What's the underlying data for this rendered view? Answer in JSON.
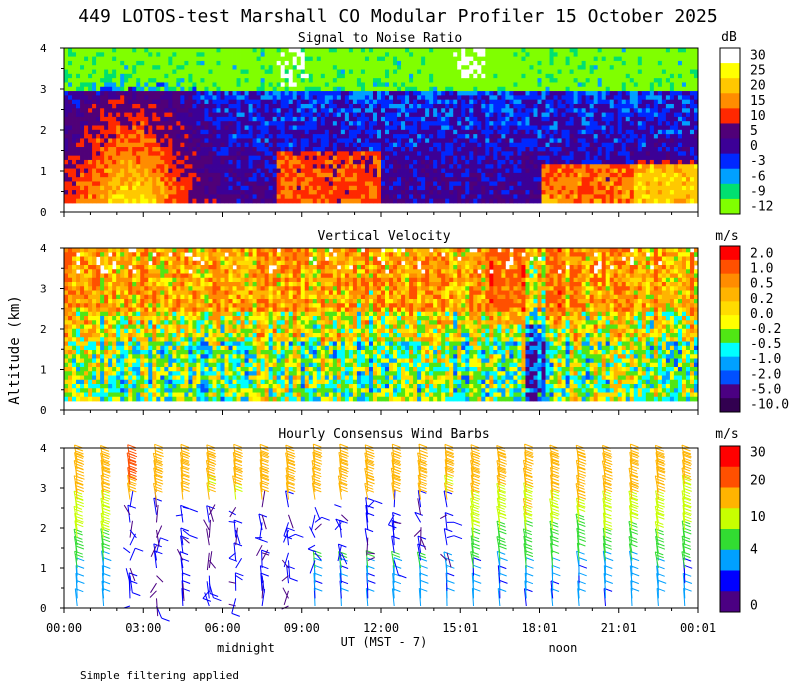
{
  "title": "449 LOTOS-test Marshall CO Modular Profiler 15 October 2025",
  "ylabel": "Altitude (km)",
  "xlabel": "UT  (MST - 7)",
  "x_ticks": [
    "00:00",
    "03:00",
    "06:00",
    "09:00",
    "12:00",
    "15:01",
    "18:01",
    "21:01",
    "00:01"
  ],
  "local_labels": [
    {
      "text": "midnight",
      "hour": 7
    },
    {
      "text": "noon",
      "hour": 19
    }
  ],
  "footer": "Simple filtering applied",
  "colors": {
    "background": "#ffffff",
    "text": "#000000"
  },
  "chart_data": [
    {
      "type": "heatmap",
      "title": "Signal to Noise Ratio",
      "units": "dB",
      "xlabel": "UT (MST - 7)",
      "ylabel": "Altitude (km)",
      "x_range_hours": [
        0,
        24
      ],
      "ylim": [
        0,
        4
      ],
      "y_ticks": [
        0,
        1,
        2,
        3,
        4
      ],
      "colorbar": {
        "labels": [
          "30",
          "25",
          "20",
          "15",
          "10",
          "5",
          "0",
          "-3",
          "-6",
          "-9",
          "-12"
        ],
        "colors": [
          "#ffffff",
          "#ffff00",
          "#ffc800",
          "#ff8c00",
          "#ff2800",
          "#500078",
          "#3c0096",
          "#0028ff",
          "#00a0ff",
          "#00e070",
          "#80ff00"
        ]
      }
    },
    {
      "type": "heatmap",
      "title": "Vertical Velocity",
      "units": "m/s",
      "xlabel": "UT (MST - 7)",
      "ylabel": "Altitude (km)",
      "x_range_hours": [
        0,
        24
      ],
      "ylim": [
        0,
        4
      ],
      "y_ticks": [
        0,
        1,
        2,
        3,
        4
      ],
      "colorbar": {
        "labels": [
          "2.0",
          "1.0",
          "0.5",
          "0.2",
          "0.0",
          "-0.2",
          "-0.5",
          "-1.0",
          "-2.0",
          "-5.0",
          "-10.0"
        ],
        "colors": [
          "#ff0000",
          "#ff5000",
          "#ff8c00",
          "#ffb400",
          "#ffdc00",
          "#ffff00",
          "#50e614",
          "#00ffff",
          "#00a0ff",
          "#0050ff",
          "#4b0082",
          "#320050"
        ]
      }
    },
    {
      "type": "wind_barbs",
      "title": "Hourly Consensus Wind Barbs",
      "units": "m/s",
      "xlabel": "UT (MST - 7)",
      "ylabel": "Altitude (km)",
      "x_range_hours": [
        0,
        24
      ],
      "ylim": [
        0,
        4
      ],
      "y_ticks": [
        0,
        1,
        2,
        3,
        4
      ],
      "colorbar": {
        "labels": [
          "30",
          "20",
          "10",
          "4",
          "0"
        ],
        "label_values": [
          30,
          20,
          10,
          4,
          0
        ],
        "colors": [
          "#ff0000",
          "#ff5000",
          "#ffb400",
          "#c8ff00",
          "#32dc32",
          "#00a0ff",
          "#0000ff",
          "#4b0082"
        ]
      }
    }
  ]
}
